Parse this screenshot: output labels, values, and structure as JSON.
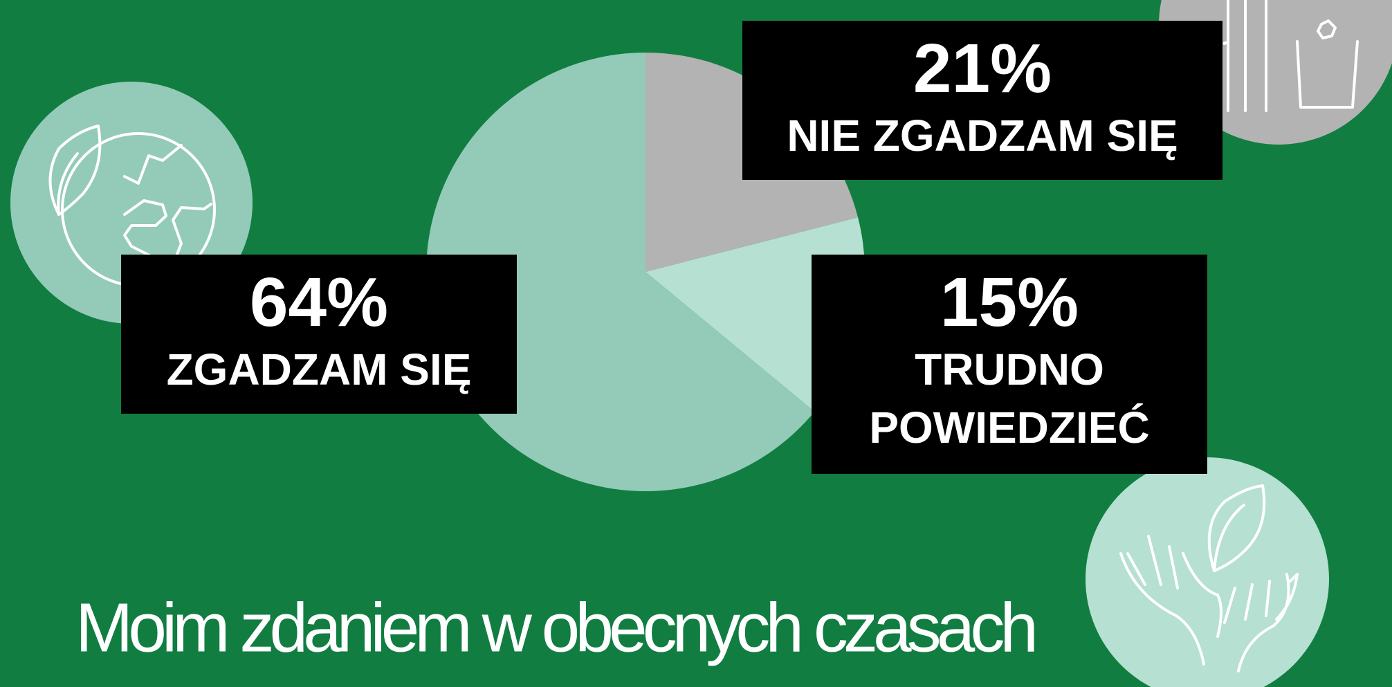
{
  "chart_data": {
    "type": "pie",
    "title": "Moim zdaniem w obecnych czasach",
    "categories": [
      "NIE ZGADZAM SIĘ",
      "TRUDNO POWIEDZIEĆ",
      "ZGADZAM SIĘ"
    ],
    "values": [
      21,
      15,
      64
    ],
    "value_labels": [
      "21%",
      "15%",
      "64%"
    ],
    "colors": [
      "#b3b3b3",
      "#b5e0d2",
      "#93cbb8"
    ]
  }
}
